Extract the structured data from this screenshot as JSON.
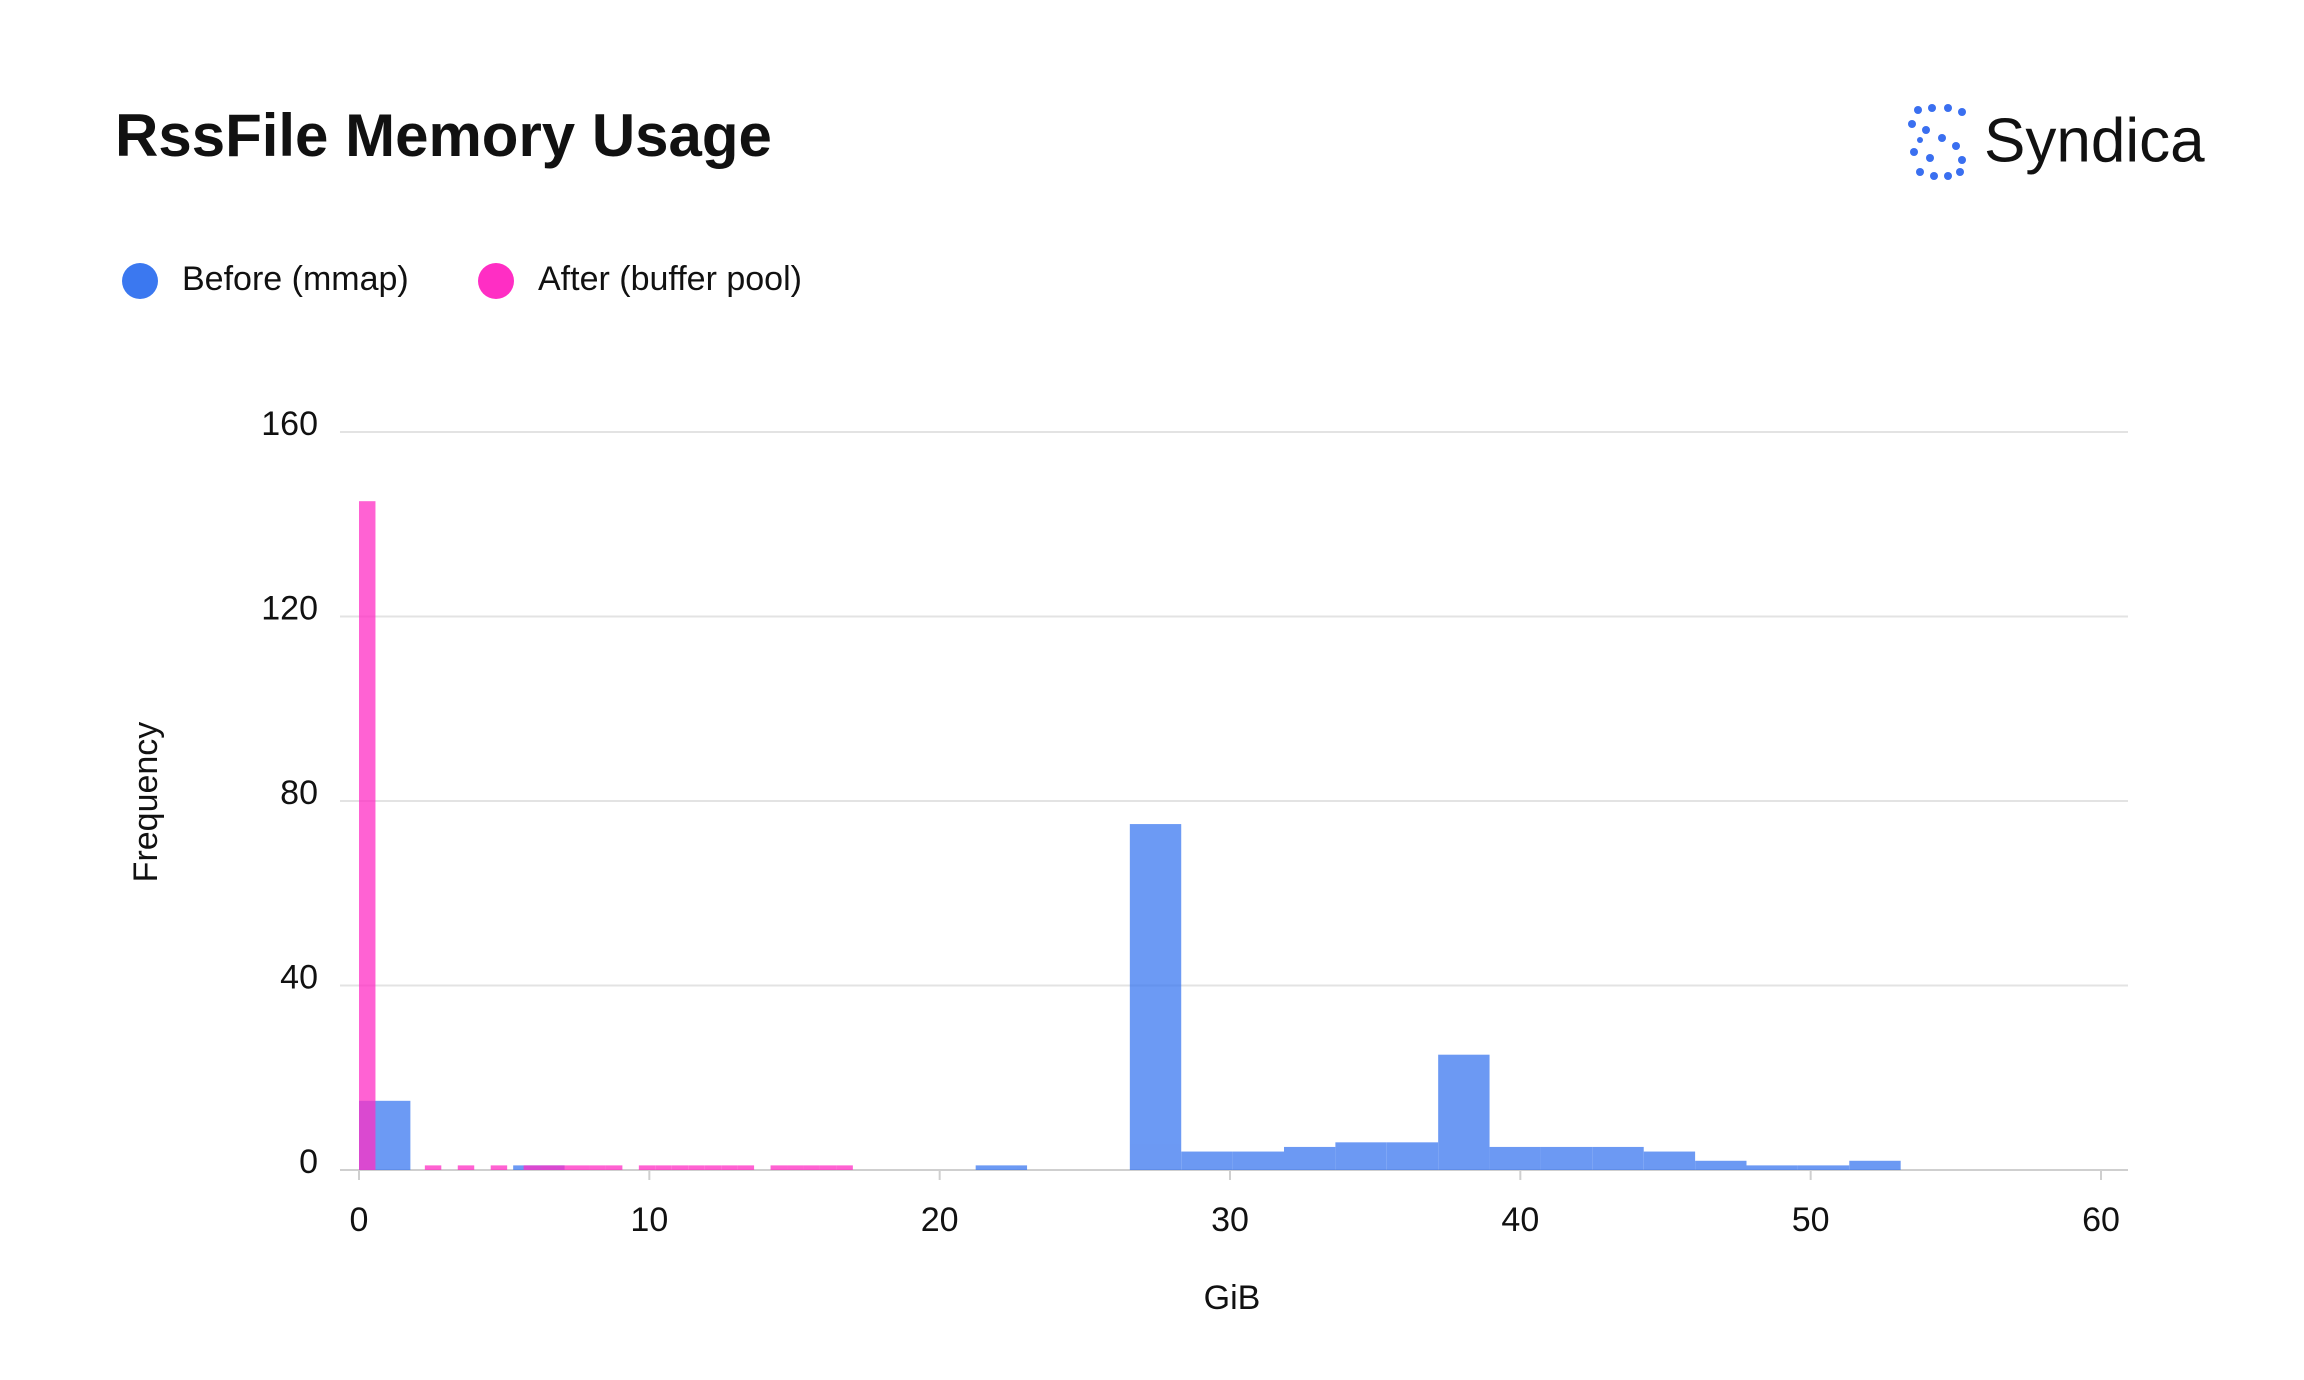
{
  "chart_data": {
    "type": "histogram",
    "title": "RssFile Memory Usage",
    "brand": "Syndica",
    "x_label": "GiB",
    "y_label": "Frequency",
    "xlim": [
      0,
      60.5
    ],
    "ylim": [
      0,
      160
    ],
    "xticks": [
      0,
      10,
      20,
      30,
      40,
      50,
      60
    ],
    "yticks": [
      0,
      40,
      80,
      120,
      160
    ],
    "grid": true,
    "series": [
      {
        "name": "Before (mmap)",
        "color": "#3b78f0",
        "bins": [
          0,
          1.77,
          3.54,
          5.31,
          7.08,
          8.85,
          10.62,
          12.39,
          14.16,
          15.93,
          17.7,
          19.47,
          21.24,
          23.01,
          24.78,
          26.55,
          28.32,
          30.09,
          31.86,
          33.63,
          35.4,
          37.17,
          38.94,
          40.71,
          42.48,
          44.25,
          46.02,
          47.79,
          49.56,
          51.33,
          53.1
        ],
        "values": [
          15,
          0,
          0,
          1,
          0,
          0,
          0,
          0,
          0,
          0,
          0,
          0,
          1,
          0,
          0,
          75,
          4,
          4,
          5,
          6,
          6,
          25,
          5,
          5,
          5,
          4,
          2,
          1,
          1,
          2
        ]
      },
      {
        "name": "After (buffer pool)",
        "color": "#ff2ec4",
        "bins": [
          0,
          0.567,
          1.134,
          1.701,
          2.268,
          2.835,
          3.402,
          3.969,
          4.536,
          5.103,
          5.67,
          6.237,
          6.804,
          7.371,
          7.938,
          8.505,
          9.072,
          9.639,
          10.206,
          10.773,
          11.34,
          11.907,
          12.474,
          13.041,
          13.608,
          14.175,
          14.742,
          15.309,
          15.876,
          16.443,
          17.01
        ],
        "values": [
          145,
          0,
          0,
          0,
          1,
          0,
          1,
          0,
          1,
          0,
          1,
          1,
          1,
          1,
          1,
          1,
          0,
          1,
          1,
          1,
          1,
          1,
          1,
          1,
          0,
          1,
          1,
          1,
          1,
          1
        ]
      }
    ]
  }
}
